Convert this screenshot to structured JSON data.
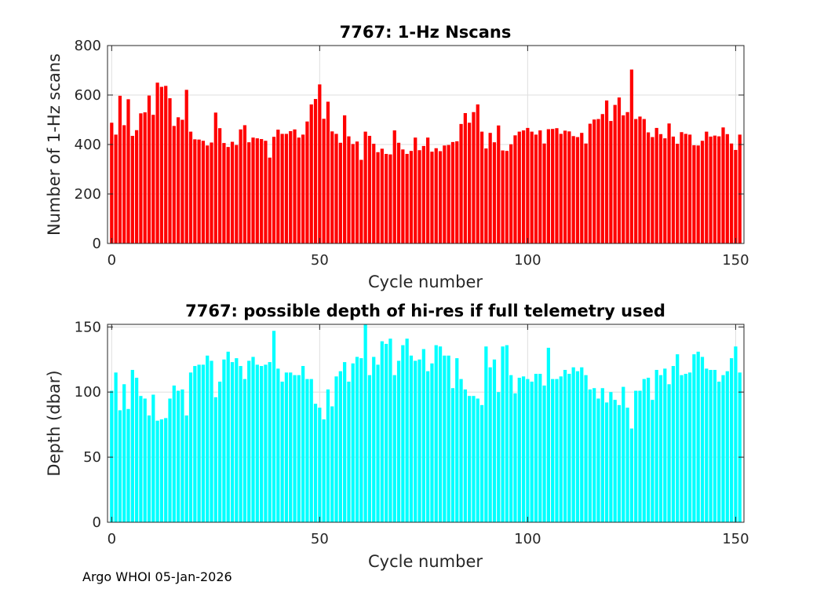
{
  "footer": "Argo WHOI 05-Jan-2026",
  "chart_data": [
    {
      "type": "bar",
      "title": "7767: 1-Hz Nscans",
      "xlabel": "Cycle number",
      "ylabel": "Number of 1-Hz scans",
      "xlim": [
        -1,
        152
      ],
      "ylim": [
        0,
        800
      ],
      "xticks": [
        0,
        50,
        100,
        150
      ],
      "yticks": [
        0,
        200,
        400,
        600,
        800
      ],
      "grid": true,
      "color": "#ff0000",
      "x_start": 0,
      "values": [
        488,
        440,
        597,
        478,
        583,
        435,
        458,
        526,
        530,
        598,
        520,
        650,
        633,
        637,
        587,
        475,
        510,
        500,
        621,
        452,
        421,
        420,
        415,
        396,
        408,
        529,
        466,
        406,
        390,
        411,
        398,
        461,
        478,
        409,
        428,
        425,
        422,
        415,
        347,
        431,
        460,
        443,
        443,
        454,
        461,
        428,
        440,
        493,
        562,
        584,
        643,
        504,
        573,
        453,
        443,
        407,
        518,
        433,
        402,
        412,
        338,
        452,
        435,
        403,
        369,
        383,
        362,
        360,
        457,
        407,
        380,
        362,
        374,
        428,
        377,
        394,
        428,
        371,
        385,
        373,
        396,
        398,
        410,
        413,
        483,
        527,
        488,
        531,
        562,
        452,
        384,
        447,
        409,
        477,
        376,
        374,
        401,
        437,
        452,
        457,
        467,
        452,
        440,
        457,
        404,
        462,
        463,
        466,
        443,
        456,
        453,
        434,
        430,
        447,
        404,
        484,
        501,
        503,
        523,
        578,
        495,
        560,
        590,
        518,
        531,
        703,
        503,
        513,
        503,
        449,
        430,
        467,
        442,
        425,
        485,
        432,
        403,
        450,
        443,
        440,
        397,
        396,
        415,
        452,
        432,
        436,
        433,
        469,
        442,
        404,
        378,
        440
      ]
    },
    {
      "type": "bar",
      "title": "7767: possible depth of hi-res if full telemetry used",
      "xlabel": "Cycle number",
      "ylabel": "Depth (dbar)",
      "xlim": [
        -1,
        152
      ],
      "ylim": [
        0,
        152
      ],
      "xticks": [
        0,
        50,
        100,
        150
      ],
      "yticks": [
        0,
        50,
        100,
        150
      ],
      "grid": true,
      "color": "#00ffff",
      "x_start": 0,
      "values": [
        101,
        115,
        86,
        106,
        87,
        117,
        111,
        97,
        95,
        82,
        98,
        78,
        79,
        80,
        95,
        105,
        101,
        102,
        82,
        115,
        120,
        121,
        121,
        128,
        124,
        96,
        108,
        125,
        131,
        123,
        126,
        120,
        110,
        124,
        127,
        121,
        120,
        121,
        123,
        147,
        118,
        108,
        115,
        115,
        113,
        113,
        120,
        110,
        110,
        91,
        88,
        79,
        102,
        89,
        112,
        116,
        123,
        108,
        122,
        127,
        126,
        152,
        113,
        127,
        121,
        139,
        137,
        141,
        113,
        124,
        136,
        141,
        128,
        124,
        125,
        133,
        116,
        122,
        136,
        135,
        128,
        128,
        103,
        126,
        110,
        102,
        97,
        97,
        95,
        90,
        135,
        119,
        125,
        100,
        135,
        136,
        113,
        99,
        111,
        112,
        110,
        108,
        114,
        114,
        105,
        134,
        110,
        110,
        112,
        117,
        114,
        119,
        116,
        119,
        113,
        102,
        103,
        95,
        103,
        92,
        100,
        94,
        90,
        104,
        88,
        72,
        101,
        101,
        110,
        111,
        94,
        117,
        113,
        118,
        106,
        120,
        129,
        113,
        114,
        115,
        129,
        131,
        127,
        118,
        117,
        117,
        108,
        113,
        116,
        126,
        135,
        115
      ]
    }
  ]
}
